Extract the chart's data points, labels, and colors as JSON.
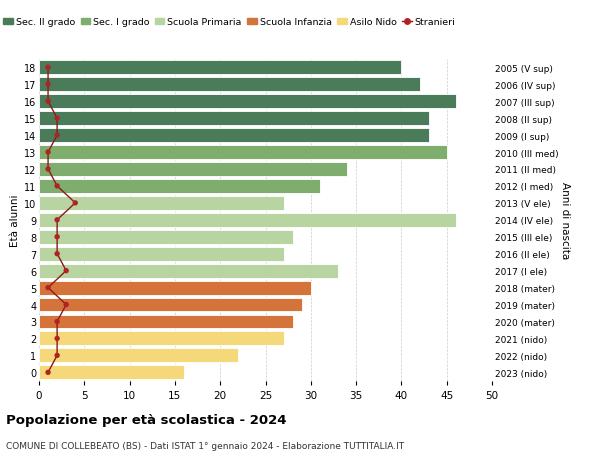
{
  "ages": [
    18,
    17,
    16,
    15,
    14,
    13,
    12,
    11,
    10,
    9,
    8,
    7,
    6,
    5,
    4,
    3,
    2,
    1,
    0
  ],
  "years": [
    "2005 (V sup)",
    "2006 (IV sup)",
    "2007 (III sup)",
    "2008 (II sup)",
    "2009 (I sup)",
    "2010 (III med)",
    "2011 (II med)",
    "2012 (I med)",
    "2013 (V ele)",
    "2014 (IV ele)",
    "2015 (III ele)",
    "2016 (II ele)",
    "2017 (I ele)",
    "2018 (mater)",
    "2019 (mater)",
    "2020 (mater)",
    "2021 (nido)",
    "2022 (nido)",
    "2023 (nido)"
  ],
  "values": [
    40,
    42,
    46,
    43,
    43,
    45,
    34,
    31,
    27,
    46,
    28,
    27,
    33,
    30,
    29,
    28,
    27,
    22,
    16
  ],
  "stranieri": [
    1,
    1,
    1,
    2,
    2,
    1,
    1,
    2,
    4,
    2,
    2,
    2,
    3,
    1,
    3,
    2,
    2,
    2,
    1
  ],
  "colors": {
    "sec2": "#4a7c59",
    "sec1": "#7fad6e",
    "primaria": "#b8d4a0",
    "infanzia": "#d4733a",
    "nido": "#f5d87a",
    "stranieri_line": "#8b1a1a",
    "stranieri_dot": "#b22222"
  },
  "school_types": {
    "sec2": [
      14,
      15,
      16,
      17,
      18
    ],
    "sec1": [
      11,
      12,
      13
    ],
    "primaria": [
      6,
      7,
      8,
      9,
      10
    ],
    "infanzia": [
      3,
      4,
      5
    ],
    "nido": [
      0,
      1,
      2
    ]
  },
  "title": "Popolazione per età scolastica - 2024",
  "subtitle": "COMUNE DI COLLEBEATO (BS) - Dati ISTAT 1° gennaio 2024 - Elaborazione TUTTITALIA.IT",
  "xlabel_right": "Anni di nascita",
  "ylabel": "Età alunni",
  "xlim": [
    0,
    50
  ],
  "background_color": "#ffffff",
  "grid_color": "#cccccc"
}
